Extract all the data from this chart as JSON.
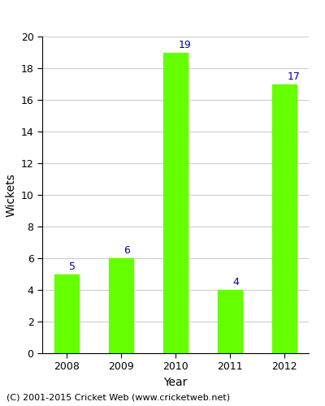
{
  "categories": [
    "2008",
    "2009",
    "2010",
    "2011",
    "2012"
  ],
  "values": [
    5,
    6,
    19,
    4,
    17
  ],
  "bar_color": "#66ff00",
  "bar_edgecolor": "#66ff00",
  "title": "",
  "xlabel": "Year",
  "ylabel": "Wickets",
  "ylim": [
    0,
    20
  ],
  "yticks": [
    0,
    2,
    4,
    6,
    8,
    10,
    12,
    14,
    16,
    18,
    20
  ],
  "label_color": "#000099",
  "label_fontsize": 9,
  "axis_label_fontsize": 10,
  "tick_fontsize": 9,
  "background_color": "#ffffff",
  "grid_color": "#cccccc",
  "footer_text": "(C) 2001-2015 Cricket Web (www.cricketweb.net)",
  "footer_fontsize": 8,
  "bar_width": 0.45
}
